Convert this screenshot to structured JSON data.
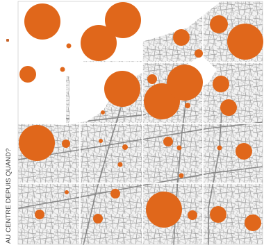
{
  "figure": {
    "vertical_label": "AU CENTRE DEPUIS QUAND?",
    "grid": {
      "columns": 4,
      "rows": 4
    },
    "colors": {
      "bubble": "#e0671b",
      "map_line": "#8d8d8d",
      "map_background": "#f2f2f2",
      "blank_area": "#ffffff",
      "grid_line": "#ffffff"
    },
    "marker_icon": "small-orange-dot-icon"
  }
}
